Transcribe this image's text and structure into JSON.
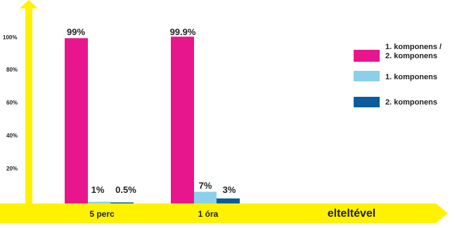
{
  "chart_data": {
    "type": "bar",
    "categories": [
      "5 perc",
      "1 óra"
    ],
    "series": [
      {
        "name": "1. komponens / 2. komponens",
        "values": [
          99,
          99.9
        ],
        "labels": [
          "99%",
          "99.9%"
        ],
        "color": "#e8168c"
      },
      {
        "name": "1. komponens",
        "values": [
          1,
          7
        ],
        "labels": [
          "1%",
          "7%"
        ],
        "color": "#8ccfea"
      },
      {
        "name": "2. komponens",
        "values": [
          0.5,
          3
        ],
        "labels": [
          "0.5%",
          "3%"
        ],
        "color": "#0a5c9c"
      }
    ],
    "xlabel": "elteltével",
    "ylim": [
      0,
      100
    ],
    "yticks": [
      20,
      40,
      60,
      80,
      100
    ],
    "ytick_labels": [
      "20%",
      "40%",
      "60%",
      "80%",
      "100%"
    ],
    "axis_color": "#fff200",
    "grid": false,
    "legend_position": "right"
  }
}
